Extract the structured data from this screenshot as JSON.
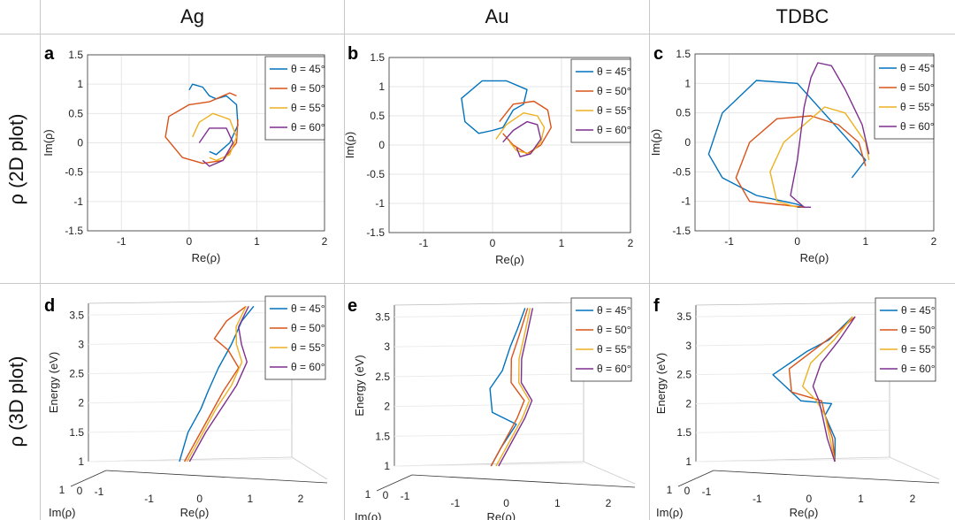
{
  "header": {
    "columns": [
      {
        "label": "Ag"
      },
      {
        "label": "Au"
      },
      {
        "label": "TDBC"
      }
    ],
    "rows": [
      {
        "label": "ρ (2D plot)"
      },
      {
        "label": "ρ (3D plot)"
      }
    ]
  },
  "legend_labels": [
    "θ = 45°",
    "θ = 50°",
    "θ = 55°",
    "θ = 60°"
  ],
  "colors": {
    "theta_45": "#0072BD",
    "theta_50": "#D95319",
    "theta_55": "#EDB120",
    "theta_60": "#7E2F8E"
  },
  "chart_data": [
    {
      "panel": "a",
      "type": "line",
      "material": "Ag",
      "view": "2D",
      "xlabel": "Re(ρ)",
      "ylabel": "Im(ρ)",
      "xlim": [
        -1.5,
        2
      ],
      "ylim": [
        -1.5,
        1.5
      ],
      "xticks": [
        -1,
        0,
        1,
        2
      ],
      "yticks": [
        -1.5,
        -1,
        -0.5,
        0,
        0.5,
        1,
        1.5
      ],
      "grid": true,
      "legend_position": "top-right",
      "series": [
        {
          "name": "θ = 45°",
          "x": [
            0.0,
            0.05,
            0.2,
            0.3,
            0.4,
            0.55,
            0.7,
            0.72,
            0.6,
            0.4,
            0.3
          ],
          "y": [
            0.9,
            1.0,
            0.95,
            0.8,
            0.75,
            0.8,
            0.65,
            0.3,
            0.0,
            -0.2,
            -0.15
          ]
        },
        {
          "name": "θ = 50°",
          "x": [
            0.7,
            0.6,
            0.3,
            0.0,
            -0.3,
            -0.35,
            -0.1,
            0.2,
            0.5,
            0.7,
            0.72
          ],
          "y": [
            0.8,
            0.85,
            0.7,
            0.65,
            0.45,
            0.1,
            -0.25,
            -0.35,
            -0.3,
            0.0,
            0.4
          ]
        },
        {
          "name": "θ = 55°",
          "x": [
            0.05,
            0.15,
            0.35,
            0.6,
            0.7,
            0.6,
            0.4,
            0.3
          ],
          "y": [
            0.1,
            0.35,
            0.5,
            0.4,
            0.1,
            -0.2,
            -0.3,
            -0.25
          ]
        },
        {
          "name": "θ = 60°",
          "x": [
            0.15,
            0.3,
            0.55,
            0.65,
            0.5,
            0.3,
            0.2
          ],
          "y": [
            0.0,
            0.25,
            0.25,
            0.0,
            -0.3,
            -0.4,
            -0.3
          ]
        }
      ]
    },
    {
      "panel": "b",
      "type": "line",
      "material": "Au",
      "view": "2D",
      "xlabel": "Re(ρ)",
      "ylabel": "Im(ρ)",
      "xlim": [
        -1.5,
        2
      ],
      "ylim": [
        -1.5,
        1.5
      ],
      "xticks": [
        -1,
        0,
        1,
        2
      ],
      "yticks": [
        -1.5,
        -1,
        -0.5,
        0,
        0.5,
        1,
        1.5
      ],
      "grid": true,
      "legend_position": "top-right",
      "series": [
        {
          "name": "θ = 45°",
          "x": [
            0.0,
            0.15,
            0.3,
            0.45,
            0.5,
            0.2,
            -0.15,
            -0.45,
            -0.4,
            -0.2,
            0.0
          ],
          "y": [
            0.25,
            0.3,
            0.6,
            0.7,
            0.95,
            1.1,
            1.1,
            0.8,
            0.4,
            0.2,
            0.25
          ]
        },
        {
          "name": "θ = 50°",
          "x": [
            0.1,
            0.3,
            0.6,
            0.8,
            0.85,
            0.7,
            0.5,
            0.3,
            0.15
          ],
          "y": [
            0.4,
            0.7,
            0.75,
            0.6,
            0.3,
            0.0,
            -0.15,
            0.0,
            0.2
          ]
        },
        {
          "name": "θ = 55°",
          "x": [
            0.05,
            0.2,
            0.45,
            0.65,
            0.75,
            0.7,
            0.55,
            0.35,
            0.25
          ],
          "y": [
            0.1,
            0.35,
            0.55,
            0.5,
            0.3,
            0.05,
            -0.15,
            -0.1,
            0.05
          ]
        },
        {
          "name": "θ = 60°",
          "x": [
            0.15,
            0.3,
            0.5,
            0.65,
            0.7,
            0.55,
            0.4,
            0.35
          ],
          "y": [
            0.05,
            0.25,
            0.4,
            0.35,
            0.1,
            -0.15,
            -0.2,
            -0.05
          ]
        }
      ]
    },
    {
      "panel": "c",
      "type": "line",
      "material": "TDBC",
      "view": "2D",
      "xlabel": "Re(ρ)",
      "ylabel": "Im(ρ)",
      "xlim": [
        -1.5,
        2
      ],
      "ylim": [
        -1.5,
        1.5
      ],
      "xticks": [
        -1,
        0,
        1,
        2
      ],
      "yticks": [
        -1.5,
        -1,
        -0.5,
        0,
        0.5,
        1,
        1.5
      ],
      "grid": true,
      "legend_position": "top-right",
      "series": [
        {
          "name": "θ = 45°",
          "x": [
            0.8,
            1.0,
            0.7,
            0.0,
            -0.6,
            -1.1,
            -1.3,
            -1.1,
            -0.6,
            0.0,
            0.1,
            0.0
          ],
          "y": [
            -0.6,
            -0.3,
            0.1,
            1.0,
            1.05,
            0.5,
            -0.2,
            -0.6,
            -0.9,
            -1.05,
            -1.1,
            -1.1
          ]
        },
        {
          "name": "θ = 50°",
          "x": [
            1.0,
            0.9,
            0.6,
            0.2,
            -0.3,
            -0.7,
            -0.9,
            -0.7,
            -0.3,
            0.1
          ],
          "y": [
            -0.4,
            0.0,
            0.3,
            0.45,
            0.4,
            0.0,
            -0.6,
            -1.0,
            -1.05,
            -1.1
          ]
        },
        {
          "name": "θ = 55°",
          "x": [
            1.05,
            1.0,
            0.7,
            0.4,
            0.1,
            -0.2,
            -0.4,
            -0.3,
            0.0
          ],
          "y": [
            -0.3,
            0.0,
            0.5,
            0.6,
            0.3,
            0.0,
            -0.5,
            -1.0,
            -1.1
          ]
        },
        {
          "name": "θ = 60°",
          "x": [
            1.05,
            0.95,
            0.7,
            0.5,
            0.3,
            0.2,
            0.1,
            0.0,
            -0.1,
            0.1,
            0.2
          ],
          "y": [
            -0.2,
            0.3,
            0.9,
            1.3,
            1.35,
            1.1,
            0.6,
            -0.3,
            -0.9,
            -1.1,
            -1.1
          ]
        }
      ]
    },
    {
      "panel": "d",
      "type": "line",
      "material": "Ag",
      "view": "3D",
      "xlabel": "Re(ρ)",
      "ylabel": "Im(ρ)",
      "zlabel": "Energy (eV)",
      "xticks": [
        -1,
        0,
        1,
        2
      ],
      "yticks": [
        -1,
        0,
        1
      ],
      "zticks": [
        1,
        1.5,
        2,
        2.5,
        3,
        3.5
      ],
      "zlim": [
        1,
        3.7
      ],
      "grid": true,
      "legend_position": "top-right",
      "series": [
        {
          "name": "θ = 45°",
          "re": [
            -0.4,
            -0.3,
            -0.1,
            0.0,
            0.15,
            0.35,
            0.5,
            0.7
          ],
          "energy": [
            1.0,
            1.5,
            1.9,
            2.2,
            2.6,
            3.0,
            3.4,
            3.65
          ]
        },
        {
          "name": "θ = 50°",
          "re": [
            -0.3,
            -0.1,
            0.1,
            0.3,
            0.55,
            0.3,
            0.0,
            0.2,
            0.55
          ],
          "energy": [
            1.0,
            1.4,
            1.8,
            2.2,
            2.6,
            2.9,
            3.1,
            3.4,
            3.65
          ]
        },
        {
          "name": "θ = 55°",
          "re": [
            -0.25,
            0.0,
            0.2,
            0.45,
            0.6,
            0.45,
            0.4,
            0.55
          ],
          "energy": [
            1.0,
            1.5,
            1.9,
            2.3,
            2.7,
            3.0,
            3.3,
            3.65
          ]
        },
        {
          "name": "θ = 60°",
          "re": [
            -0.2,
            0.05,
            0.3,
            0.55,
            0.7,
            0.55,
            0.45,
            0.6
          ],
          "energy": [
            1.0,
            1.5,
            1.9,
            2.3,
            2.7,
            3.0,
            3.3,
            3.65
          ]
        }
      ]
    },
    {
      "panel": "e",
      "type": "line",
      "material": "Au",
      "view": "3D",
      "xlabel": "Re(ρ)",
      "ylabel": "Im(ρ)",
      "zlabel": "Energy (eV)",
      "xticks": [
        -1,
        0,
        1,
        2
      ],
      "yticks": [
        -1,
        0,
        1
      ],
      "zticks": [
        1,
        1.5,
        2,
        2.5,
        3,
        3.5
      ],
      "zlim": [
        1,
        3.7
      ],
      "grid": true,
      "legend_position": "top-right",
      "series": [
        {
          "name": "θ = 45°",
          "re": [
            -0.3,
            -0.15,
            0.1,
            -0.4,
            -0.5,
            -0.3,
            -0.2,
            -0.1,
            0.0
          ],
          "energy": [
            1.0,
            1.3,
            1.7,
            1.9,
            2.3,
            2.6,
            3.0,
            3.3,
            3.65
          ]
        },
        {
          "name": "θ = 50°",
          "re": [
            -0.3,
            -0.1,
            0.1,
            0.2,
            -0.1,
            -0.15,
            -0.05,
            0.05
          ],
          "energy": [
            1.0,
            1.4,
            1.8,
            2.1,
            2.4,
            2.8,
            3.2,
            3.65
          ]
        },
        {
          "name": "θ = 55°",
          "re": [
            -0.2,
            0.0,
            0.2,
            0.3,
            0.05,
            0.0,
            0.05,
            0.1
          ],
          "energy": [
            1.0,
            1.4,
            1.8,
            2.1,
            2.4,
            2.8,
            3.2,
            3.65
          ]
        },
        {
          "name": "θ = 60°",
          "re": [
            -0.15,
            0.05,
            0.25,
            0.35,
            0.1,
            0.05,
            0.1,
            0.15
          ],
          "energy": [
            1.0,
            1.4,
            1.8,
            2.1,
            2.4,
            2.8,
            3.2,
            3.65
          ]
        }
      ]
    },
    {
      "panel": "f",
      "type": "line",
      "material": "TDBC",
      "view": "3D",
      "xlabel": "Re(ρ)",
      "ylabel": "Im(ρ)",
      "zlabel": "Energy (eV)",
      "xticks": [
        -1,
        0,
        1,
        2
      ],
      "yticks": [
        -1,
        0,
        1
      ],
      "zticks": [
        1,
        1.5,
        2,
        2.5,
        3,
        3.5
      ],
      "zlim": [
        1,
        3.7
      ],
      "grid": true,
      "legend_position": "top-right",
      "series": [
        {
          "name": "θ = 45°",
          "re": [
            0.5,
            0.45,
            0.2,
            0.3,
            -0.3,
            -0.9,
            -0.3,
            0.1,
            0.3,
            0.5
          ],
          "energy": [
            1.0,
            1.4,
            1.8,
            2.0,
            2.05,
            2.5,
            2.9,
            3.1,
            3.3,
            3.5
          ]
        },
        {
          "name": "θ = 50°",
          "re": [
            0.5,
            0.4,
            0.2,
            0.1,
            -0.5,
            -0.6,
            -0.2,
            0.2,
            0.55
          ],
          "energy": [
            1.0,
            1.4,
            1.8,
            2.05,
            2.2,
            2.6,
            2.9,
            3.2,
            3.5
          ]
        },
        {
          "name": "θ = 55°",
          "re": [
            0.5,
            0.35,
            0.2,
            0.0,
            -0.3,
            -0.2,
            0.2,
            0.5
          ],
          "energy": [
            1.0,
            1.4,
            1.8,
            2.05,
            2.3,
            2.7,
            3.1,
            3.5
          ]
        },
        {
          "name": "θ = 60°",
          "re": [
            0.5,
            0.3,
            0.15,
            0.05,
            -0.1,
            0.0,
            0.3,
            0.55
          ],
          "energy": [
            1.0,
            1.4,
            1.8,
            2.05,
            2.3,
            2.7,
            3.1,
            3.5
          ]
        }
      ]
    }
  ]
}
